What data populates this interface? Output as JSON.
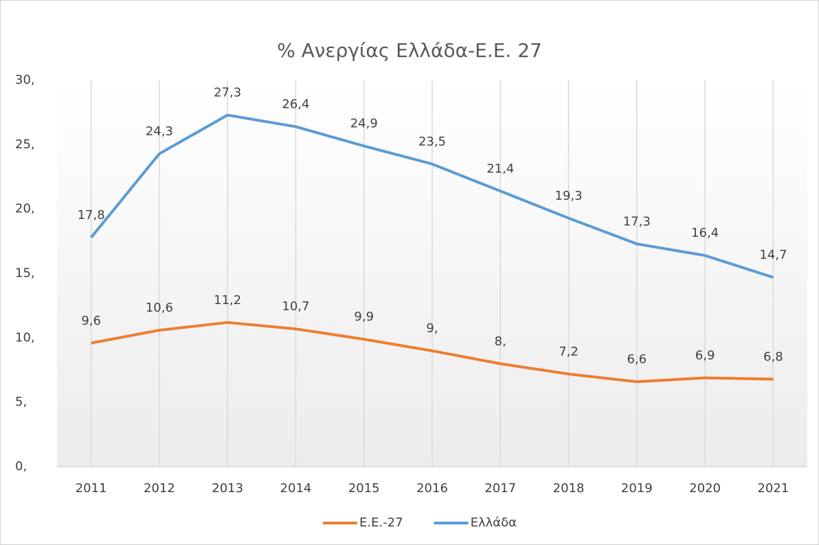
{
  "chart_data": {
    "type": "line",
    "title": "% Ανεργίας Ελλάδα-Ε.Ε. 27",
    "categories": [
      "2011",
      "2012",
      "2013",
      "2014",
      "2015",
      "2016",
      "2017",
      "2018",
      "2019",
      "2020",
      "2021"
    ],
    "series": [
      {
        "name": "Ε.Ε.-27",
        "color": "#ed7d31",
        "values": [
          9.6,
          10.6,
          11.2,
          10.7,
          9.9,
          9,
          8,
          7.2,
          6.6,
          6.9,
          6.8
        ],
        "value_labels": [
          "9,6",
          "10,6",
          "11,2",
          "10,7",
          "9,9",
          "9,",
          "8,",
          "7,2",
          "6,6",
          "6,9",
          "6,8"
        ]
      },
      {
        "name": "Ελλάδα",
        "color": "#5b9bd5",
        "values": [
          17.8,
          24.3,
          27.3,
          26.4,
          24.9,
          23.5,
          21.4,
          19.3,
          17.3,
          16.4,
          14.7
        ],
        "value_labels": [
          "17,8",
          "24,3",
          "27,3",
          "26,4",
          "24,9",
          "23,5",
          "21,4",
          "19,3",
          "17,3",
          "16,4",
          "14,7"
        ]
      }
    ],
    "ylim": [
      0,
      30
    ],
    "yticks": [
      {
        "value": 0,
        "label": "0,"
      },
      {
        "value": 5,
        "label": "5,"
      },
      {
        "value": 10,
        "label": "10,"
      },
      {
        "value": 15,
        "label": "15,"
      },
      {
        "value": 20,
        "label": "20,"
      },
      {
        "value": 25,
        "label": "25,"
      },
      {
        "value": 30,
        "label": "30,"
      }
    ],
    "grid": true,
    "legend": "bottom"
  }
}
